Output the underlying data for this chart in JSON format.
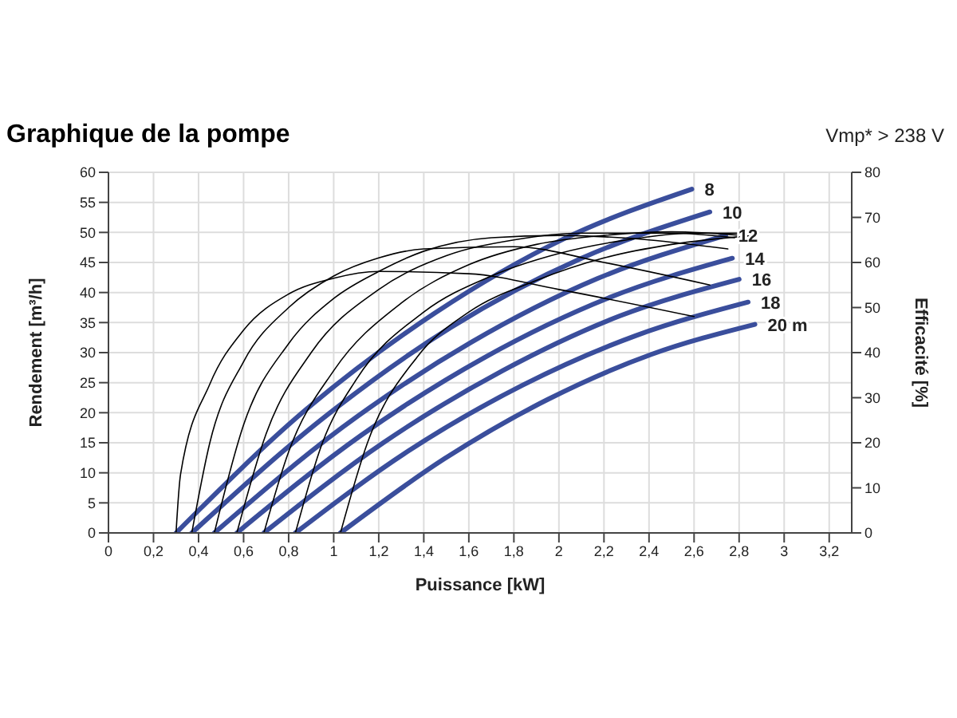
{
  "chart_data": {
    "type": "line",
    "title": "Graphique de la pompe",
    "annotations": [
      "Vmp* > 238 V"
    ],
    "xlabel": "Puissance [kW]",
    "ylabel": "Rendement [m³/h]",
    "y2label": "Efficacité [%]",
    "xlim": [
      0,
      3.3
    ],
    "xticks": [
      0,
      {
        "value": 0.2,
        "label": "0,2"
      },
      {
        "value": 0.4,
        "label": "0,4"
      },
      {
        "value": 0.6,
        "label": "0,6"
      },
      {
        "value": 0.8,
        "label": "0,8"
      },
      1,
      {
        "value": 1.2,
        "label": "1,2"
      },
      {
        "value": 1.4,
        "label": "1,4"
      },
      {
        "value": 1.6,
        "label": "1,6"
      },
      {
        "value": 1.8,
        "label": "1,8"
      },
      2,
      {
        "value": 2.2,
        "label": "2,2"
      },
      {
        "value": 2.4,
        "label": "2,4"
      },
      {
        "value": 2.6,
        "label": "2,6"
      },
      {
        "value": 2.8,
        "label": "2,8"
      },
      3,
      {
        "value": 3.2,
        "label": "3,2"
      }
    ],
    "ylim": [
      0,
      60
    ],
    "yticks": [
      0,
      5,
      10,
      15,
      20,
      25,
      30,
      35,
      40,
      45,
      50,
      55,
      60
    ],
    "y2lim": [
      0,
      80
    ],
    "y2ticks": [
      0,
      10,
      20,
      30,
      40,
      50,
      60,
      70,
      80
    ],
    "grid": true,
    "marker": "none",
    "line_style": "solid",
    "series": [
      {
        "name": "8",
        "color": "#3a4e9c",
        "x": [
          0.3,
          0.87,
          1.45,
          2.02,
          2.59
        ],
        "values": [
          0,
          20.3,
          36.6,
          48.9,
          57.2
        ]
      },
      {
        "name": "10",
        "color": "#3a4e9c",
        "x": [
          0.37,
          0.95,
          1.52,
          2.1,
          2.67
        ],
        "values": [
          0,
          19,
          34.2,
          45.7,
          53.4
        ]
      },
      {
        "name": "12",
        "color": "#3a4e9c",
        "x": [
          0.47,
          1.04,
          1.61,
          2.17,
          2.74
        ],
        "values": [
          0,
          17.6,
          31.7,
          42.3,
          49.5
        ]
      },
      {
        "name": "14",
        "color": "#3a4e9c",
        "x": [
          0.57,
          1.12,
          1.67,
          2.22,
          2.77
        ],
        "values": [
          0,
          16.2,
          29.2,
          39.1,
          45.7
        ]
      },
      {
        "name": "16",
        "color": "#3a4e9c",
        "x": [
          0.69,
          1.22,
          1.75,
          2.27,
          2.8
        ],
        "values": [
          0,
          15,
          27,
          36.1,
          42.2
        ]
      },
      {
        "name": "18",
        "color": "#3a4e9c",
        "x": [
          0.83,
          1.33,
          1.84,
          2.34,
          2.84
        ],
        "values": [
          0,
          13.6,
          24.6,
          32.8,
          38.4
        ]
      },
      {
        "name": "20 m",
        "color": "#3a4e9c",
        "x": [
          1.03,
          1.49,
          1.95,
          2.41,
          2.87
        ],
        "values": [
          0,
          12.3,
          22.2,
          29.7,
          34.7
        ]
      },
      {
        "color": "#000000",
        "axis": "y2",
        "x": [
          0.3,
          0.32,
          0.45,
          0.6,
          0.8,
          1,
          1.2,
          1.6,
          2,
          2.6
        ],
        "values": [
          0,
          13,
          33,
          45,
          53,
          56.5,
          58,
          57.5,
          54,
          48
        ]
      },
      {
        "color": "#000000",
        "axis": "y2",
        "x": [
          0.37,
          0.45,
          0.6,
          0.8,
          1,
          1.2,
          1.4,
          1.8,
          2.2,
          2.67
        ],
        "values": [
          0,
          20,
          38,
          50,
          57,
          61,
          63,
          63.5,
          60,
          55
        ]
      },
      {
        "color": "#000000",
        "axis": "y2",
        "x": [
          0.47,
          0.6,
          0.8,
          1,
          1.2,
          1.4,
          1.7,
          2,
          2.4,
          2.75
        ],
        "values": [
          0,
          24,
          42,
          52,
          58,
          62.5,
          65.5,
          66,
          65,
          63
        ]
      },
      {
        "color": "#000000",
        "axis": "y2",
        "x": [
          0.57,
          0.7,
          0.9,
          1.2,
          1.5,
          1.8,
          2.1,
          2.5,
          2.78
        ],
        "values": [
          0,
          22,
          40,
          54,
          61.5,
          65,
          66.5,
          66.5,
          65.5
        ]
      },
      {
        "color": "#000000",
        "axis": "y2",
        "x": [
          0.69,
          0.8,
          1,
          1.3,
          1.6,
          1.9,
          2.2,
          2.5,
          2.82
        ],
        "values": [
          0,
          18,
          36,
          51,
          59.5,
          64,
          66,
          66.8,
          66
        ]
      },
      {
        "color": "#000000",
        "axis": "y2",
        "x": [
          0.83,
          0.95,
          1.1,
          1.4,
          1.7,
          2,
          2.3,
          2.6,
          2.84
        ],
        "values": [
          0,
          20,
          34,
          49,
          57,
          62,
          65,
          66.5,
          66.5
        ]
      },
      {
        "color": "#000000",
        "axis": "y2",
        "x": [
          1.03,
          1.15,
          1.37,
          1.6,
          1.9,
          2.2,
          2.5,
          2.86
        ],
        "values": [
          0,
          20,
          39,
          49,
          56,
          61,
          64,
          66
        ]
      }
    ]
  }
}
